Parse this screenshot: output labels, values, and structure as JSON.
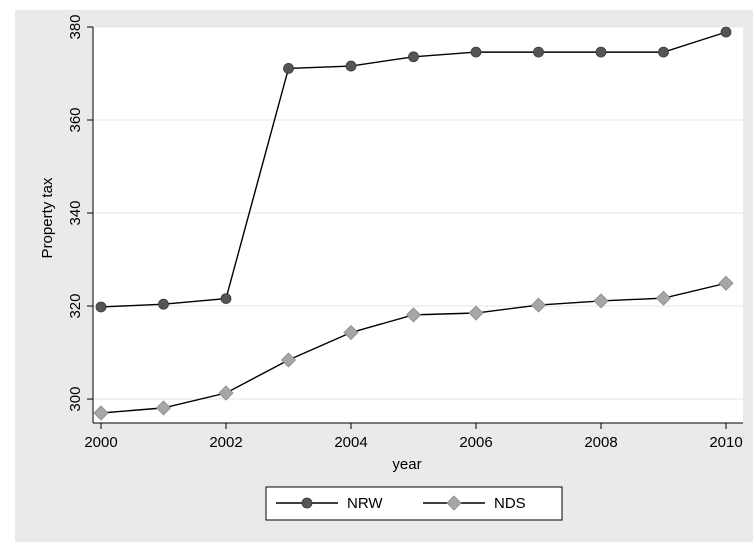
{
  "chart_data": {
    "type": "line",
    "title": "",
    "xlabel": "year",
    "ylabel": "Property tax",
    "xlim": [
      2000,
      2010
    ],
    "ylim": [
      297,
      380
    ],
    "x_ticks": [
      2000,
      2002,
      2004,
      2006,
      2008,
      2010
    ],
    "y_ticks": [
      300,
      320,
      340,
      360,
      380
    ],
    "grid": "horizontal",
    "legend_position": "bottom",
    "x": [
      2000,
      2001,
      2002,
      2003,
      2004,
      2005,
      2006,
      2007,
      2008,
      2009,
      2010
    ],
    "series": [
      {
        "name": "NRW",
        "marker": "circle",
        "marker_color": "#555555",
        "values": [
          319.8,
          320.4,
          321.6,
          371.1,
          371.6,
          373.6,
          374.6,
          374.6,
          374.6,
          374.6,
          378.9
        ]
      },
      {
        "name": "NDS",
        "marker": "diamond",
        "marker_color": "#a6a6a6",
        "values": [
          297.0,
          298.1,
          301.3,
          308.4,
          314.3,
          318.1,
          318.5,
          320.2,
          321.1,
          321.7,
          324.9
        ]
      }
    ],
    "colors": {
      "background": "#eaeaea",
      "plot_background": "#ffffff",
      "grid": "#e6e6e6",
      "line": "#000000"
    }
  }
}
